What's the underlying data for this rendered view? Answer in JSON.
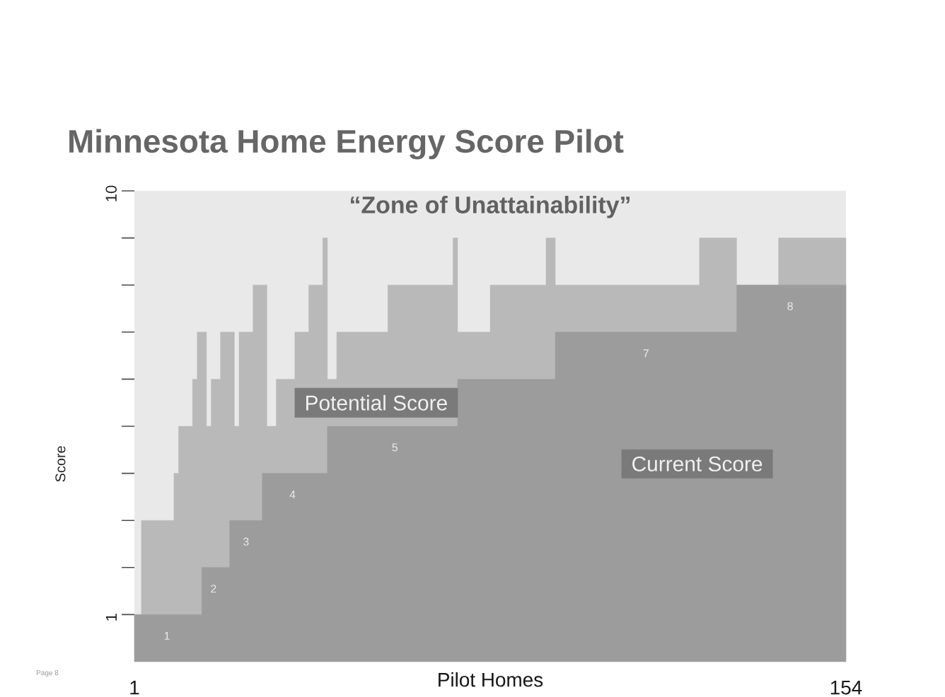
{
  "chart_data": {
    "type": "area",
    "title": "Minnesota Home Energy Score Pilot",
    "xlabel": "Pilot Homes",
    "ylabel": "Score",
    "x": [
      1,
      2,
      3,
      4,
      5,
      6,
      7,
      8,
      9,
      10,
      11,
      12,
      13,
      14,
      15,
      16,
      17,
      18,
      19,
      20,
      21,
      22,
      23,
      24,
      25,
      26,
      27,
      28,
      29,
      30,
      31,
      32,
      33,
      34,
      35,
      36,
      37,
      38,
      39,
      40,
      41,
      42,
      43,
      44,
      45,
      46,
      47,
      48,
      49,
      50,
      51,
      52,
      53,
      54,
      55,
      56,
      57,
      58,
      59,
      60,
      61,
      62,
      63,
      64,
      65,
      66,
      67,
      68,
      69,
      70,
      71,
      72,
      73,
      74,
      75,
      76,
      77,
      78,
      79,
      80,
      81,
      82,
      83,
      84,
      85,
      86,
      87,
      88,
      89,
      90,
      91,
      92,
      93,
      94,
      95,
      96,
      97,
      98,
      99,
      100,
      101,
      102,
      103,
      104,
      105,
      106,
      107,
      108,
      109,
      110,
      111,
      112,
      113,
      114,
      115,
      116,
      117,
      118,
      119,
      120,
      121,
      122,
      123,
      124,
      125,
      126,
      127,
      128,
      129,
      130,
      131,
      132,
      133,
      134,
      135,
      136,
      137,
      138,
      139,
      140,
      141,
      142,
      143,
      144,
      145,
      146,
      147,
      148,
      149,
      150,
      151,
      152,
      153,
      154
    ],
    "xlim": [
      1,
      154
    ],
    "xticks": [
      1,
      154
    ],
    "ylim": [
      0,
      10
    ],
    "yticks": [
      {
        "value": 1,
        "label": "1"
      },
      {
        "value": 2,
        "label": null
      },
      {
        "value": 3,
        "label": null
      },
      {
        "value": 4,
        "label": null
      },
      {
        "value": 5,
        "label": null
      },
      {
        "value": 6,
        "label": null
      },
      {
        "value": 7,
        "label": null
      },
      {
        "value": 8,
        "label": null
      },
      {
        "value": 9,
        "label": null
      },
      {
        "value": 10,
        "label": "10"
      }
    ],
    "series": [
      {
        "name": "Potential Score",
        "color": "#b9b9b9",
        "values": [
          1,
          1,
          3,
          3,
          3,
          3,
          3,
          3,
          3,
          4,
          5,
          5,
          5,
          6,
          7,
          7,
          5,
          6,
          6,
          7,
          7,
          7,
          5,
          7,
          7,
          7,
          8,
          8,
          8,
          5,
          5,
          6,
          6,
          6,
          6,
          7,
          7,
          7,
          8,
          8,
          8,
          9,
          6,
          6,
          7,
          7,
          7,
          7,
          7,
          7,
          7,
          7,
          7,
          7,
          7,
          8,
          8,
          8,
          8,
          8,
          8,
          8,
          8,
          8,
          8,
          8,
          8,
          8,
          8,
          9,
          7,
          7,
          7,
          7,
          7,
          7,
          7,
          8,
          8,
          8,
          8,
          8,
          8,
          8,
          8,
          8,
          8,
          8,
          8,
          9,
          9,
          8,
          8,
          8,
          8,
          8,
          8,
          8,
          8,
          8,
          8,
          8,
          8,
          8,
          8,
          8,
          8,
          8,
          8,
          8,
          8,
          8,
          8,
          8,
          8,
          8,
          8,
          8,
          8,
          8,
          8,
          8,
          9,
          9,
          9,
          9,
          9,
          9,
          9,
          9,
          8,
          8,
          8,
          8,
          8,
          8,
          8,
          8,
          8,
          9,
          9,
          9,
          9,
          9,
          9,
          9,
          9,
          9,
          9,
          9,
          9,
          9,
          9,
          9
        ]
      },
      {
        "name": "Current Score",
        "color": "#9c9c9c",
        "values": [
          1,
          1,
          1,
          1,
          1,
          1,
          1,
          1,
          1,
          1,
          1,
          1,
          1,
          1,
          1,
          2,
          2,
          2,
          2,
          2,
          2,
          3,
          3,
          3,
          3,
          3,
          3,
          3,
          4,
          4,
          4,
          4,
          4,
          4,
          4,
          4,
          4,
          4,
          4,
          4,
          4,
          4,
          5,
          5,
          5,
          5,
          5,
          5,
          5,
          5,
          5,
          5,
          5,
          5,
          5,
          5,
          5,
          5,
          5,
          5,
          5,
          5,
          5,
          5,
          5,
          5,
          5,
          5,
          5,
          5,
          6,
          6,
          6,
          6,
          6,
          6,
          6,
          6,
          6,
          6,
          6,
          6,
          6,
          6,
          6,
          6,
          6,
          6,
          6,
          6,
          6,
          7,
          7,
          7,
          7,
          7,
          7,
          7,
          7,
          7,
          7,
          7,
          7,
          7,
          7,
          7,
          7,
          7,
          7,
          7,
          7,
          7,
          7,
          7,
          7,
          7,
          7,
          7,
          7,
          7,
          7,
          7,
          7,
          7,
          7,
          7,
          7,
          7,
          7,
          7,
          8,
          8,
          8,
          8,
          8,
          8,
          8,
          8,
          8,
          8,
          8,
          8,
          8,
          8,
          8,
          8,
          8,
          8,
          8,
          8,
          8,
          8,
          8,
          8
        ]
      }
    ],
    "bands": [
      {
        "axis": "y",
        "from": 0,
        "to": 10,
        "label": "“Zone of Unattainability”",
        "color": "#e9e9e9"
      }
    ],
    "annotations": [
      "1",
      "2",
      "3",
      "4",
      "5",
      "7",
      "8",
      "Page 8"
    ]
  }
}
